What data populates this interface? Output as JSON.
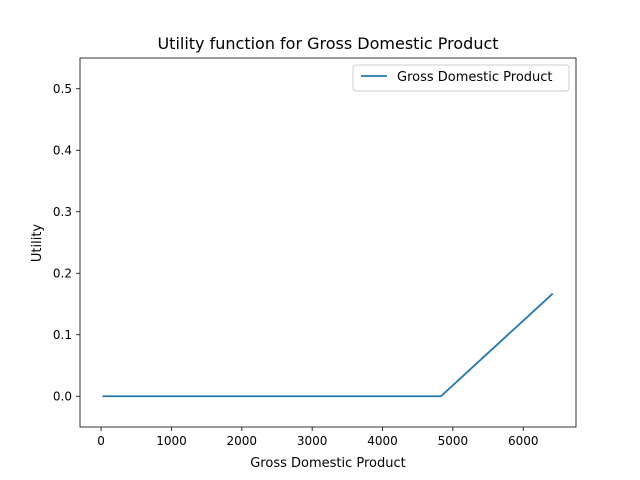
{
  "chart_data": {
    "type": "line",
    "title": "Utility function for Gross Domestic Product",
    "xlabel": "Gross Domestic Product",
    "ylabel": "Utility",
    "xlim": [
      -300,
      6750
    ],
    "ylim": [
      -0.05,
      0.55
    ],
    "xticks": [
      0,
      1000,
      2000,
      3000,
      4000,
      5000,
      6000
    ],
    "yticks": [
      0.0,
      0.1,
      0.2,
      0.3,
      0.4,
      0.5
    ],
    "xtick_labels": [
      "0",
      "1000",
      "2000",
      "3000",
      "4000",
      "5000",
      "6000"
    ],
    "ytick_labels": [
      "0.0",
      "0.1",
      "0.2",
      "0.3",
      "0.4",
      "0.5"
    ],
    "grid": false,
    "legend": {
      "placement": "top-right"
    },
    "series": [
      {
        "name": "Gross Domestic Product",
        "color": "#1f77b4",
        "x": [
          20,
          4830,
          6420
        ],
        "y": [
          0.0,
          0.0,
          0.167
        ]
      }
    ]
  }
}
